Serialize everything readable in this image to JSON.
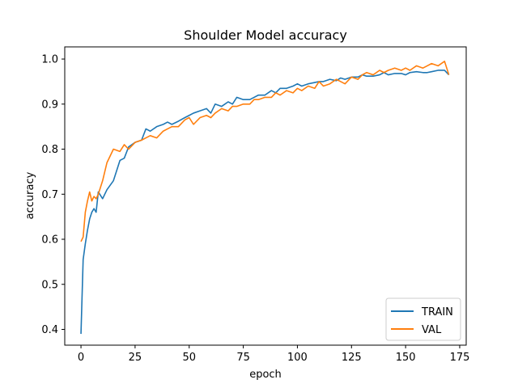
{
  "chart_data": {
    "type": "line",
    "title": "Shoulder Model accuracy",
    "xlabel": "epoch",
    "ylabel": "accuracy",
    "xlim": [
      -7.5,
      178
    ],
    "ylim": [
      0.365,
      1.027
    ],
    "xticks": [
      0,
      25,
      50,
      75,
      100,
      125,
      150,
      175
    ],
    "yticks": [
      0.4,
      0.5,
      0.6,
      0.7,
      0.8,
      0.9,
      1.0
    ],
    "grid": false,
    "legend_position": "bottom-right",
    "series": [
      {
        "name": "TRAIN",
        "color": "#1f77b4",
        "x": [
          0,
          1,
          2,
          3,
          4,
          5,
          6,
          7,
          8,
          10,
          12,
          15,
          18,
          20,
          22,
          25,
          28,
          30,
          32,
          35,
          38,
          40,
          42,
          45,
          48,
          50,
          52,
          55,
          58,
          60,
          62,
          65,
          68,
          70,
          72,
          75,
          78,
          80,
          82,
          85,
          88,
          90,
          92,
          95,
          98,
          100,
          102,
          105,
          108,
          110,
          112,
          115,
          118,
          120,
          122,
          125,
          128,
          130,
          132,
          135,
          138,
          140,
          142,
          145,
          148,
          150,
          152,
          155,
          158,
          160,
          162,
          165,
          168,
          170
        ],
        "y": [
          0.39,
          0.555,
          0.59,
          0.62,
          0.645,
          0.66,
          0.668,
          0.66,
          0.705,
          0.69,
          0.71,
          0.73,
          0.775,
          0.78,
          0.805,
          0.815,
          0.82,
          0.845,
          0.84,
          0.85,
          0.855,
          0.86,
          0.855,
          0.862,
          0.87,
          0.875,
          0.88,
          0.885,
          0.89,
          0.88,
          0.9,
          0.895,
          0.905,
          0.9,
          0.915,
          0.91,
          0.91,
          0.915,
          0.92,
          0.92,
          0.93,
          0.925,
          0.935,
          0.935,
          0.94,
          0.945,
          0.94,
          0.945,
          0.948,
          0.95,
          0.95,
          0.955,
          0.952,
          0.958,
          0.955,
          0.96,
          0.96,
          0.965,
          0.962,
          0.962,
          0.965,
          0.97,
          0.965,
          0.968,
          0.968,
          0.965,
          0.97,
          0.972,
          0.97,
          0.97,
          0.972,
          0.975,
          0.975,
          0.965
        ]
      },
      {
        "name": "VAL",
        "color": "#ff7f0e",
        "x": [
          0,
          1,
          2,
          3,
          4,
          5,
          6,
          7,
          8,
          10,
          12,
          15,
          18,
          20,
          22,
          25,
          28,
          30,
          32,
          35,
          38,
          40,
          42,
          45,
          48,
          50,
          52,
          55,
          58,
          60,
          62,
          65,
          68,
          70,
          72,
          75,
          78,
          80,
          82,
          85,
          88,
          90,
          92,
          95,
          98,
          100,
          102,
          105,
          108,
          110,
          112,
          115,
          118,
          120,
          122,
          125,
          128,
          130,
          132,
          135,
          138,
          140,
          142,
          145,
          148,
          150,
          152,
          155,
          158,
          160,
          162,
          165,
          168,
          170
        ],
        "y": [
          0.595,
          0.605,
          0.66,
          0.685,
          0.705,
          0.685,
          0.695,
          0.69,
          0.7,
          0.73,
          0.77,
          0.8,
          0.795,
          0.81,
          0.8,
          0.815,
          0.82,
          0.825,
          0.83,
          0.825,
          0.84,
          0.845,
          0.85,
          0.85,
          0.865,
          0.87,
          0.855,
          0.87,
          0.875,
          0.87,
          0.88,
          0.89,
          0.885,
          0.895,
          0.895,
          0.9,
          0.9,
          0.91,
          0.91,
          0.915,
          0.915,
          0.925,
          0.92,
          0.93,
          0.925,
          0.935,
          0.93,
          0.94,
          0.935,
          0.95,
          0.94,
          0.945,
          0.955,
          0.95,
          0.945,
          0.96,
          0.955,
          0.965,
          0.97,
          0.965,
          0.975,
          0.97,
          0.975,
          0.98,
          0.975,
          0.98,
          0.975,
          0.985,
          0.98,
          0.985,
          0.99,
          0.985,
          0.995,
          0.965
        ]
      }
    ]
  }
}
